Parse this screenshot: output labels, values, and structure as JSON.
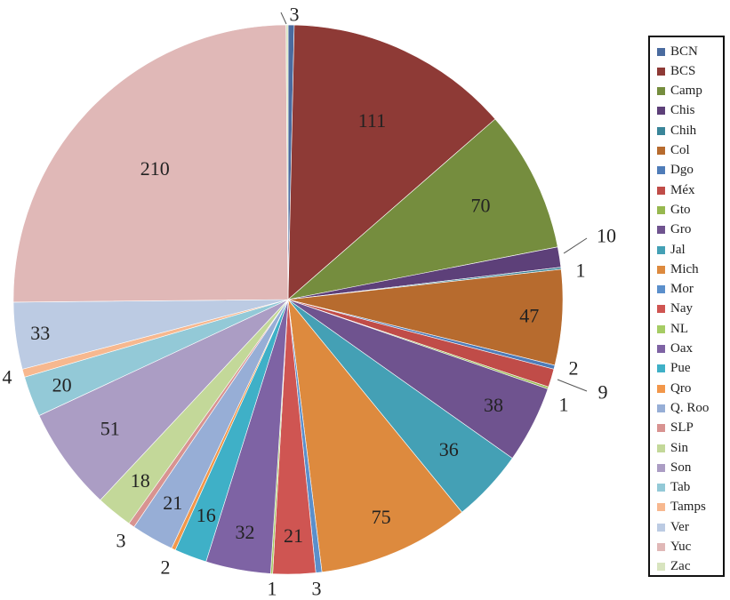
{
  "chart_data": {
    "type": "pie",
    "title": "",
    "legend_position": "right",
    "slices": [
      {
        "label": "BCN",
        "value": 3,
        "color": "#4a6b9f"
      },
      {
        "label": "BCS",
        "value": 111,
        "color": "#8e3a36"
      },
      {
        "label": "Camp",
        "value": 70,
        "color": "#758d3e"
      },
      {
        "label": "Chis",
        "value": 10,
        "color": "#5d4079"
      },
      {
        "label": "Chih",
        "value": 1,
        "color": "#3a8599"
      },
      {
        "label": "Col",
        "value": 47,
        "color": "#b76b2e"
      },
      {
        "label": "Dgo",
        "value": 2,
        "color": "#4f7cb8"
      },
      {
        "label": "Méx",
        "value": 9,
        "color": "#c04c48"
      },
      {
        "label": "Gto",
        "value": 1,
        "color": "#97b84f"
      },
      {
        "label": "Gro",
        "value": 38,
        "color": "#6f538f"
      },
      {
        "label": "Jal",
        "value": 36,
        "color": "#44a0b5"
      },
      {
        "label": "Mich",
        "value": 75,
        "color": "#dd8a3e"
      },
      {
        "label": "Mor",
        "value": 3,
        "color": "#5b8fcb"
      },
      {
        "label": "Nay",
        "value": 21,
        "color": "#cf5552"
      },
      {
        "label": "NL",
        "value": 1,
        "color": "#a6cc64"
      },
      {
        "label": "Oax",
        "value": 32,
        "color": "#7e63a4"
      },
      {
        "label": "Pue",
        "value": 16,
        "color": "#3fb0c7"
      },
      {
        "label": "Qro",
        "value": 2,
        "color": "#f2974a"
      },
      {
        "label": "Q. Roo",
        "value": 21,
        "color": "#97aed6"
      },
      {
        "label": "SLP",
        "value": 3,
        "color": "#d89391"
      },
      {
        "label": "Sin",
        "value": 18,
        "color": "#c3d899"
      },
      {
        "label": "Son",
        "value": 51,
        "color": "#ab9dc4"
      },
      {
        "label": "Tab",
        "value": 20,
        "color": "#93c9d7"
      },
      {
        "label": "Tamps",
        "value": 4,
        "color": "#f7b88f"
      },
      {
        "label": "Ver",
        "value": 33,
        "color": "#bccbe3"
      },
      {
        "label": "Yuc",
        "value": 210,
        "color": "#e0b8b7"
      },
      {
        "label": "Zac",
        "value": 1,
        "color": "#d8e4bf"
      }
    ]
  }
}
